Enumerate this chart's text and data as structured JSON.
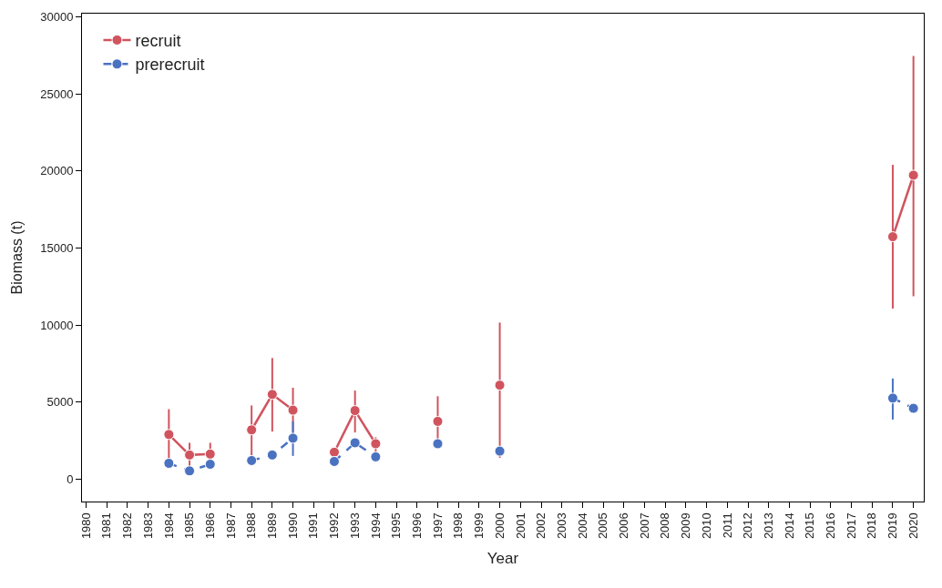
{
  "chart_data": {
    "type": "line",
    "xlabel": "Year",
    "ylabel": "Biomass (t)",
    "x": [
      1984,
      1985,
      1986,
      1987,
      1988,
      1989,
      1990,
      1991,
      1992,
      1993,
      1994,
      1995,
      1996,
      1997,
      1998,
      1999,
      2000,
      2001,
      2019,
      2020
    ],
    "series": [
      {
        "name": "recruit",
        "color": "#d0545e",
        "line_style": "solid",
        "values": [
          2900,
          1570,
          1630,
          null,
          3200,
          5500,
          4480,
          null,
          1750,
          4450,
          2300,
          null,
          null,
          3750,
          null,
          null,
          6100,
          null,
          15730,
          19720
        ],
        "errors": [
          [
            1200,
            4540
          ],
          [
            600,
            2360
          ],
          [
            900,
            2360
          ],
          null,
          [
            1500,
            4780
          ],
          [
            3090,
            7860
          ],
          [
            2800,
            5930
          ],
          null,
          [
            1300,
            2000
          ],
          [
            3030,
            5750
          ],
          [
            1700,
            2720
          ],
          null,
          null,
          [
            2420,
            5380
          ],
          null,
          null,
          [
            1390,
            10160
          ],
          null,
          [
            11070,
            20390
          ],
          [
            11860,
            27460
          ]
        ]
      },
      {
        "name": "prerecruit",
        "color": "#4a72c0",
        "line_style": "dashed",
        "values": [
          1030,
          540,
          970,
          null,
          1210,
          1570,
          2660,
          null,
          1150,
          2360,
          1450,
          null,
          null,
          2300,
          null,
          null,
          1820,
          null,
          5260,
          4600
        ],
        "errors": [
          null,
          null,
          null,
          null,
          null,
          null,
          [
            1510,
            3750
          ],
          null,
          null,
          null,
          null,
          null,
          null,
          null,
          null,
          null,
          null,
          null,
          [
            3870,
            6530
          ],
          null
        ]
      }
    ],
    "xlim": [
      1979.8,
      2020.5
    ],
    "xticks": [
      1980,
      1981,
      1982,
      1983,
      1984,
      1985,
      1986,
      1987,
      1988,
      1989,
      1990,
      1991,
      1992,
      1993,
      1994,
      1995,
      1996,
      1997,
      1998,
      1999,
      2000,
      2001,
      2002,
      2003,
      2004,
      2005,
      2006,
      2007,
      2008,
      2009,
      2010,
      2011,
      2012,
      2013,
      2014,
      2015,
      2016,
      2017,
      2018,
      2019,
      2020
    ],
    "ylim": [
      -1450,
      30200
    ],
    "yticks": [
      0,
      5000,
      10000,
      15000,
      20000,
      25000,
      30000
    ],
    "legend": "top left",
    "marker": "circle"
  }
}
